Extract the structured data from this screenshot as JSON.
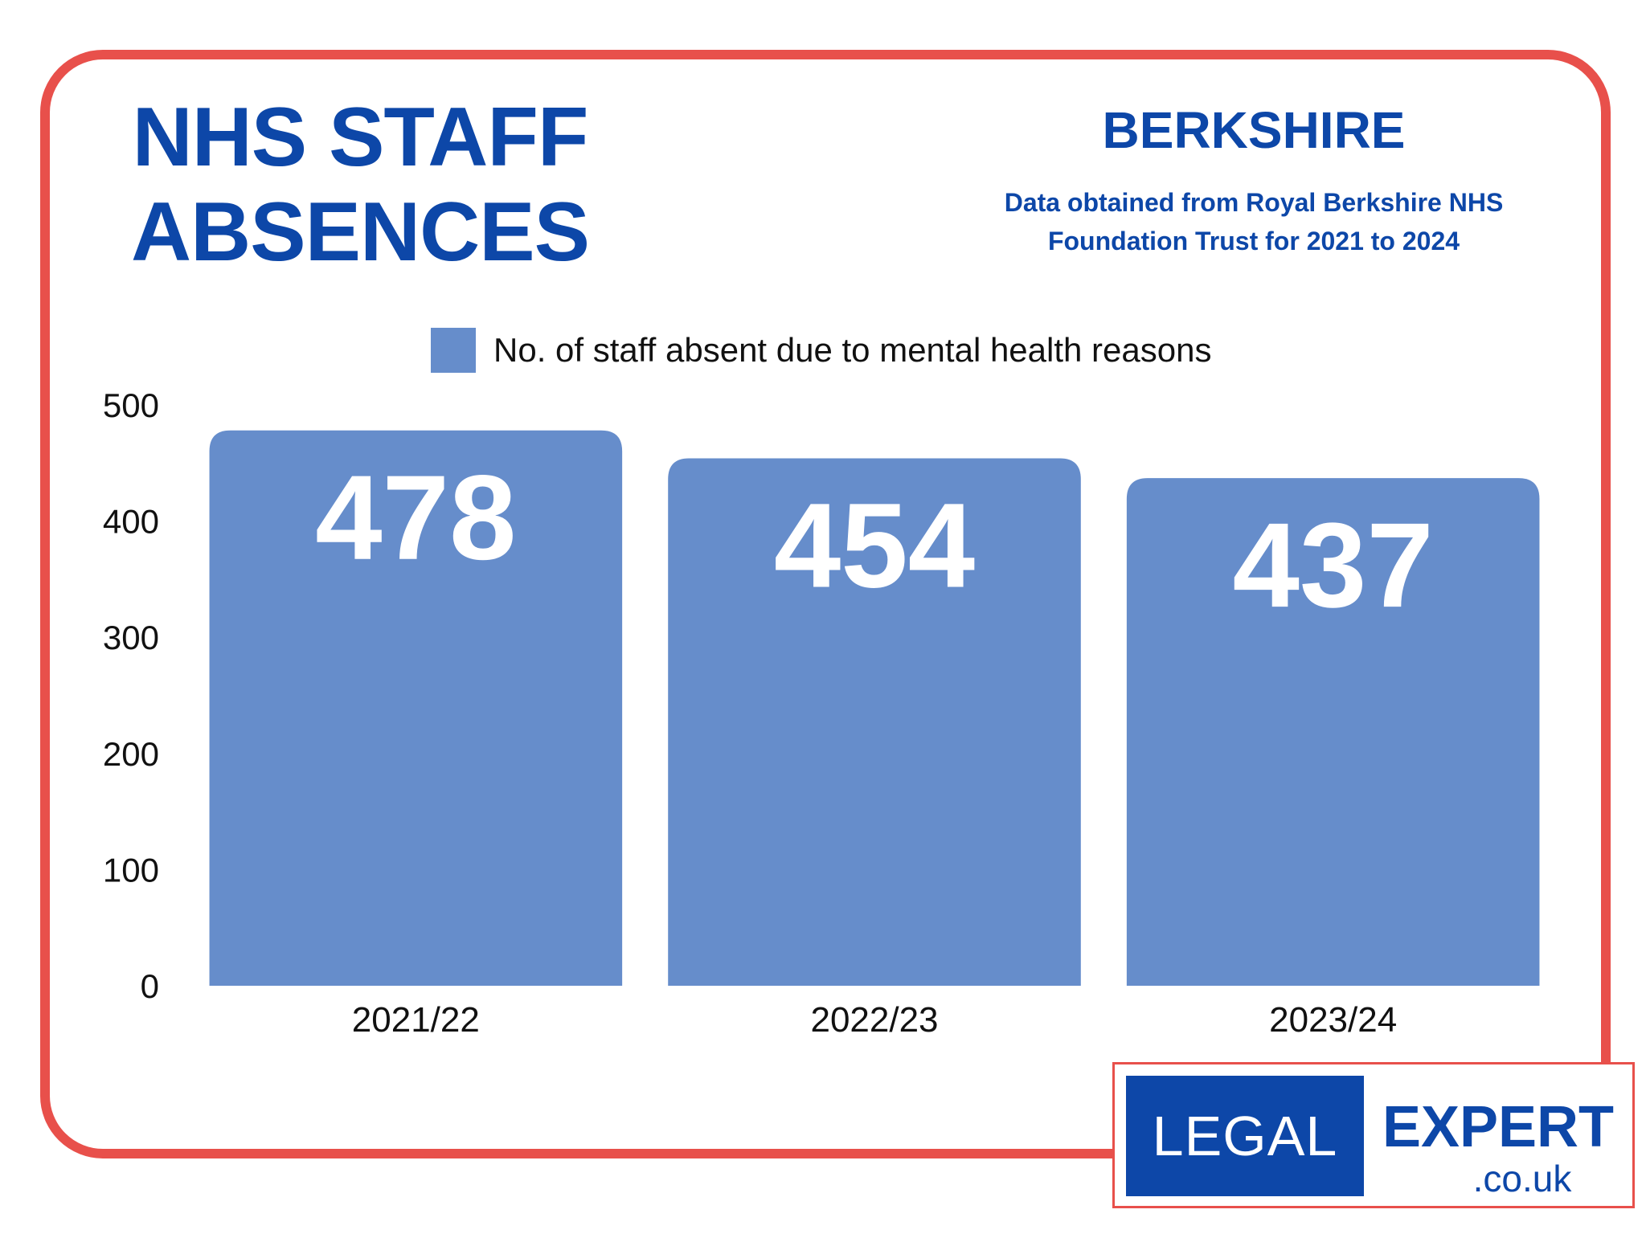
{
  "header": {
    "title_line1": "NHS STAFF",
    "title_line2": "ABSENCES",
    "region": "BERKSHIRE",
    "source_line1": "Data obtained from Royal Berkshire NHS",
    "source_line2": "Foundation Trust for 2021 to 2024"
  },
  "colors": {
    "frame": "#e8504b",
    "brand_blue": "#0d47a8",
    "bar": "#668dcb",
    "bar_label": "#ffffff"
  },
  "chart_data": {
    "type": "bar",
    "categories": [
      "2021/22",
      "2022/23",
      "2023/24"
    ],
    "series": [
      {
        "name": "No. of staff absent due to mental health reasons",
        "values": [
          478,
          454,
          437
        ]
      }
    ],
    "ylim": [
      0,
      500
    ],
    "yticks": [
      0,
      100,
      200,
      300,
      400,
      500
    ],
    "ytick_labels": [
      "0",
      "100",
      "200",
      "300",
      "400",
      "500"
    ],
    "data_labels": [
      "478",
      "454",
      "437"
    ],
    "grid": false,
    "legend_position": "top-center"
  },
  "logo": {
    "left_text": "LEGAL",
    "right_text": "EXPERT",
    "domain": ".co.uk"
  }
}
